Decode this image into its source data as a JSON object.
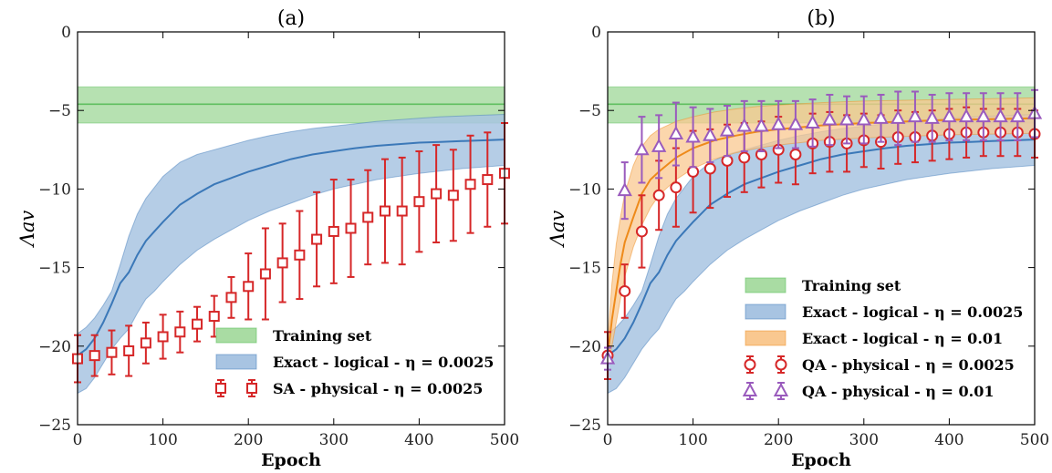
{
  "colors": {
    "training": "#5fbf5f",
    "training_fill": "#a9dca3",
    "exact_0025": "#3b78b8",
    "exact_0025_fill": "#a8c4e2",
    "exact_001": "#ee8a1a",
    "exact_001_fill": "#f9c890",
    "sa_physical": "#d62728",
    "qa_0025": "#d62728",
    "qa_001": "#9a5bbd"
  },
  "chart_data": [
    {
      "type": "line",
      "title": "(a)",
      "xlabel": "Epoch",
      "ylabel": "Λav",
      "xlim": [
        0,
        500
      ],
      "ylim": [
        -25,
        0
      ],
      "xticks": [
        "0",
        "100",
        "200",
        "300",
        "400",
        "500"
      ],
      "yticks": [
        "0",
        "−5",
        "−10",
        "−15",
        "−20",
        "−25"
      ],
      "legend_position": "lower-right",
      "legend": [
        "Training set",
        "Exact - logical - η = 0.0025",
        "SA - physical - η = 0.0025"
      ],
      "training_band": {
        "name": "Training set",
        "center": -4.6,
        "lower": -5.8,
        "upper": -3.5
      },
      "bands": [
        {
          "name": "Exact - logical - η = 0.0025",
          "x": [
            0,
            10,
            20,
            30,
            40,
            50,
            60,
            70,
            80,
            90,
            100,
            120,
            140,
            160,
            180,
            200,
            225,
            250,
            275,
            300,
            325,
            350,
            375,
            400,
            425,
            450,
            475,
            500
          ],
          "mean": [
            -20.6,
            -20.2,
            -19.5,
            -18.5,
            -17.3,
            -16.0,
            -15.3,
            -14.2,
            -13.3,
            -12.7,
            -12.1,
            -11.0,
            -10.3,
            -9.7,
            -9.3,
            -8.9,
            -8.5,
            -8.1,
            -7.8,
            -7.6,
            -7.4,
            -7.25,
            -7.15,
            -7.05,
            -7.0,
            -6.95,
            -6.9,
            -6.85
          ],
          "lower": [
            -23.0,
            -22.7,
            -22.0,
            -21.1,
            -20.2,
            -19.5,
            -18.9,
            -17.9,
            -17.0,
            -16.5,
            -15.9,
            -14.8,
            -13.9,
            -13.2,
            -12.6,
            -12.0,
            -11.4,
            -10.9,
            -10.4,
            -10.0,
            -9.7,
            -9.4,
            -9.2,
            -9.0,
            -8.85,
            -8.7,
            -8.6,
            -8.5
          ],
          "upper": [
            -19.2,
            -18.8,
            -18.2,
            -17.4,
            -16.5,
            -14.8,
            -13.0,
            -11.6,
            -10.6,
            -9.9,
            -9.2,
            -8.3,
            -7.8,
            -7.5,
            -7.2,
            -6.9,
            -6.6,
            -6.35,
            -6.15,
            -6.0,
            -5.85,
            -5.7,
            -5.6,
            -5.5,
            -5.4,
            -5.35,
            -5.3,
            -5.25
          ]
        }
      ],
      "points": [
        {
          "name": "SA - physical - η = 0.0025",
          "marker": "square",
          "x": [
            0,
            20,
            40,
            60,
            80,
            100,
            120,
            140,
            160,
            180,
            200,
            220,
            240,
            260,
            280,
            300,
            320,
            340,
            360,
            380,
            400,
            420,
            440,
            460,
            480,
            500
          ],
          "y": [
            -20.8,
            -20.6,
            -20.4,
            -20.3,
            -19.8,
            -19.4,
            -19.1,
            -18.6,
            -18.1,
            -16.9,
            -16.2,
            -15.4,
            -14.7,
            -14.2,
            -13.2,
            -12.7,
            -12.5,
            -11.8,
            -11.4,
            -11.4,
            -10.8,
            -10.3,
            -10.4,
            -9.7,
            -9.4,
            -9.0
          ],
          "err": [
            1.5,
            1.3,
            1.4,
            1.6,
            1.3,
            1.4,
            1.3,
            1.1,
            1.3,
            1.3,
            2.1,
            2.9,
            2.5,
            2.8,
            3.0,
            3.3,
            3.1,
            3.0,
            3.3,
            3.4,
            3.2,
            3.1,
            2.9,
            3.1,
            3.0,
            3.2
          ]
        }
      ]
    },
    {
      "type": "line",
      "title": "(b)",
      "xlabel": "Epoch",
      "ylabel": "Λav",
      "xlim": [
        0,
        500
      ],
      "ylim": [
        -25,
        0
      ],
      "xticks": [
        "0",
        "100",
        "200",
        "300",
        "400",
        "500"
      ],
      "yticks": [
        "0",
        "−5",
        "−10",
        "−15",
        "−20",
        "−25"
      ],
      "legend_position": "lower-right",
      "legend": [
        "Training set",
        "Exact - logical - η = 0.0025",
        "Exact - logical - η = 0.01",
        "QA - physical - η = 0.0025",
        "QA - physical - η = 0.01"
      ],
      "training_band": {
        "name": "Training set",
        "center": -4.6,
        "lower": -5.8,
        "upper": -3.5
      },
      "bands": [
        {
          "name": "Exact - logical - η = 0.0025",
          "x": [
            0,
            10,
            20,
            30,
            40,
            50,
            60,
            70,
            80,
            90,
            100,
            120,
            140,
            160,
            180,
            200,
            225,
            250,
            275,
            300,
            325,
            350,
            375,
            400,
            425,
            450,
            475,
            500
          ],
          "mean": [
            -20.6,
            -20.2,
            -19.5,
            -18.5,
            -17.3,
            -16.0,
            -15.3,
            -14.2,
            -13.3,
            -12.7,
            -12.1,
            -11.0,
            -10.3,
            -9.7,
            -9.3,
            -8.9,
            -8.5,
            -8.1,
            -7.8,
            -7.6,
            -7.4,
            -7.25,
            -7.15,
            -7.05,
            -7.0,
            -6.95,
            -6.9,
            -6.85
          ],
          "lower": [
            -23.0,
            -22.7,
            -22.0,
            -21.1,
            -20.2,
            -19.5,
            -18.9,
            -17.9,
            -17.0,
            -16.5,
            -15.9,
            -14.8,
            -13.9,
            -13.2,
            -12.6,
            -12.0,
            -11.4,
            -10.9,
            -10.4,
            -10.0,
            -9.7,
            -9.4,
            -9.2,
            -9.0,
            -8.85,
            -8.7,
            -8.6,
            -8.5
          ],
          "upper": [
            -19.2,
            -18.8,
            -18.2,
            -17.4,
            -16.5,
            -14.8,
            -13.0,
            -11.6,
            -10.6,
            -9.9,
            -9.2,
            -8.3,
            -7.8,
            -7.5,
            -7.2,
            -6.9,
            -6.6,
            -6.35,
            -6.15,
            -6.0,
            -5.85,
            -5.7,
            -5.6,
            -5.5,
            -5.4,
            -5.35,
            -5.3,
            -5.25
          ]
        },
        {
          "name": "Exact - logical - η = 0.01",
          "x": [
            0,
            5,
            10,
            15,
            20,
            30,
            40,
            50,
            60,
            80,
            100,
            125,
            150,
            175,
            200,
            250,
            300,
            350,
            400,
            450,
            500
          ],
          "mean": [
            -20.6,
            -18.3,
            -16.5,
            -14.8,
            -13.4,
            -11.8,
            -10.3,
            -9.4,
            -8.9,
            -8.0,
            -7.4,
            -6.9,
            -6.6,
            -6.35,
            -6.2,
            -5.95,
            -5.8,
            -5.7,
            -5.6,
            -5.55,
            -5.5
          ],
          "lower": [
            -21.0,
            -20.0,
            -18.5,
            -17.0,
            -15.6,
            -13.7,
            -12.3,
            -11.2,
            -10.4,
            -9.4,
            -8.7,
            -8.1,
            -7.7,
            -7.4,
            -7.2,
            -6.9,
            -6.75,
            -6.65,
            -6.55,
            -6.5,
            -6.45
          ],
          "upper": [
            -19.8,
            -16.0,
            -13.5,
            -11.8,
            -10.3,
            -8.5,
            -7.3,
            -6.6,
            -6.2,
            -5.7,
            -5.4,
            -5.1,
            -4.9,
            -4.75,
            -4.65,
            -4.5,
            -4.4,
            -4.35,
            -4.3,
            -4.25,
            -4.2
          ]
        }
      ],
      "points": [
        {
          "name": "QA - physical - η = 0.0025",
          "marker": "circle",
          "x": [
            0,
            20,
            40,
            60,
            80,
            100,
            120,
            140,
            160,
            180,
            200,
            220,
            240,
            260,
            280,
            300,
            320,
            340,
            360,
            380,
            400,
            420,
            440,
            460,
            480,
            500
          ],
          "y": [
            -20.6,
            -16.5,
            -12.7,
            -10.4,
            -9.9,
            -8.9,
            -8.7,
            -8.2,
            -8.0,
            -7.8,
            -7.5,
            -7.8,
            -7.1,
            -7.0,
            -7.1,
            -6.9,
            -7.0,
            -6.7,
            -6.7,
            -6.6,
            -6.5,
            -6.4,
            -6.4,
            -6.4,
            -6.4,
            -6.5
          ],
          "err": [
            1.5,
            1.7,
            2.3,
            2.2,
            2.5,
            2.6,
            2.5,
            2.3,
            2.2,
            2.1,
            2.1,
            1.9,
            1.9,
            1.9,
            1.8,
            1.7,
            1.7,
            1.7,
            1.6,
            1.6,
            1.6,
            1.6,
            1.5,
            1.5,
            1.5,
            1.5
          ]
        },
        {
          "name": "QA - physical - η = 0.01",
          "marker": "triangle",
          "x": [
            0,
            20,
            40,
            60,
            80,
            100,
            120,
            140,
            160,
            180,
            200,
            220,
            240,
            260,
            280,
            300,
            320,
            340,
            360,
            380,
            400,
            420,
            440,
            460,
            480,
            500
          ],
          "y": [
            -20.8,
            -10.1,
            -7.5,
            -7.3,
            -6.5,
            -6.7,
            -6.6,
            -6.3,
            -6.0,
            -6.0,
            -5.9,
            -5.9,
            -5.8,
            -5.6,
            -5.6,
            -5.6,
            -5.5,
            -5.5,
            -5.4,
            -5.5,
            -5.4,
            -5.4,
            -5.4,
            -5.4,
            -5.4,
            -5.2
          ],
          "err": [
            0.7,
            1.8,
            2.1,
            2.0,
            2.0,
            1.9,
            1.7,
            1.6,
            1.6,
            1.6,
            1.5,
            1.5,
            1.5,
            1.6,
            1.5,
            1.5,
            1.5,
            1.7,
            1.6,
            1.5,
            1.5,
            1.5,
            1.5,
            1.5,
            1.5,
            1.5
          ]
        }
      ]
    }
  ]
}
